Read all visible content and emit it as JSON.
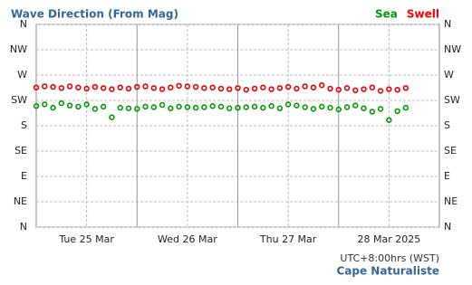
{
  "chart_data": {
    "type": "scatter",
    "title": "Wave Direction (From Mag)",
    "timezone": "UTC+8:00hrs (WST)",
    "location": "Cape Naturaliste",
    "xlim": [
      0,
      96
    ],
    "xticks": [
      {
        "value": 12,
        "label": "Tue 25 Mar"
      },
      {
        "value": 36,
        "label": "Wed 26 Mar"
      },
      {
        "value": 60,
        "label": "Thu 27 Mar"
      },
      {
        "value": 84,
        "label": "28 Mar 2025"
      }
    ],
    "ylim": [
      0,
      360
    ],
    "yticks": [
      {
        "value": 0,
        "label": "N"
      },
      {
        "value": 45,
        "label": "NE"
      },
      {
        "value": 90,
        "label": "E"
      },
      {
        "value": 135,
        "label": "SE"
      },
      {
        "value": 180,
        "label": "S"
      },
      {
        "value": 225,
        "label": "SW"
      },
      {
        "value": 270,
        "label": "W"
      },
      {
        "value": 315,
        "label": "NW"
      },
      {
        "value": 360,
        "label": "N"
      }
    ],
    "grid": true,
    "legend": "top-right",
    "x": [
      0,
      2,
      4,
      6,
      8,
      10,
      12,
      14,
      16,
      18,
      20,
      22,
      24,
      26,
      28,
      30,
      32,
      34,
      36,
      38,
      40,
      42,
      44,
      46,
      48,
      50,
      52,
      54,
      56,
      58,
      60,
      62,
      64,
      66,
      68,
      70,
      72,
      74,
      76,
      78,
      80,
      82,
      84,
      86,
      88
    ],
    "series": [
      {
        "name": "Sea",
        "color": "#009900",
        "values": [
          215,
          218,
          212,
          220,
          216,
          214,
          218,
          210,
          214,
          195,
          212,
          211,
          210,
          214,
          213,
          217,
          211,
          214,
          213,
          212,
          213,
          215,
          214,
          211,
          212,
          213,
          214,
          212,
          215,
          211,
          218,
          216,
          213,
          210,
          214,
          212,
          209,
          213,
          216,
          211,
          205,
          210,
          190,
          206,
          212
        ]
      },
      {
        "name": "Swell",
        "color": "#ee0000",
        "values": [
          248,
          250,
          249,
          247,
          250,
          248,
          246,
          249,
          247,
          245,
          248,
          246,
          249,
          250,
          247,
          245,
          248,
          251,
          250,
          249,
          247,
          248,
          246,
          245,
          247,
          244,
          246,
          248,
          245,
          247,
          249,
          246,
          250,
          248,
          252,
          246,
          244,
          247,
          243,
          245,
          248,
          242,
          245,
          244,
          247
        ]
      }
    ]
  }
}
